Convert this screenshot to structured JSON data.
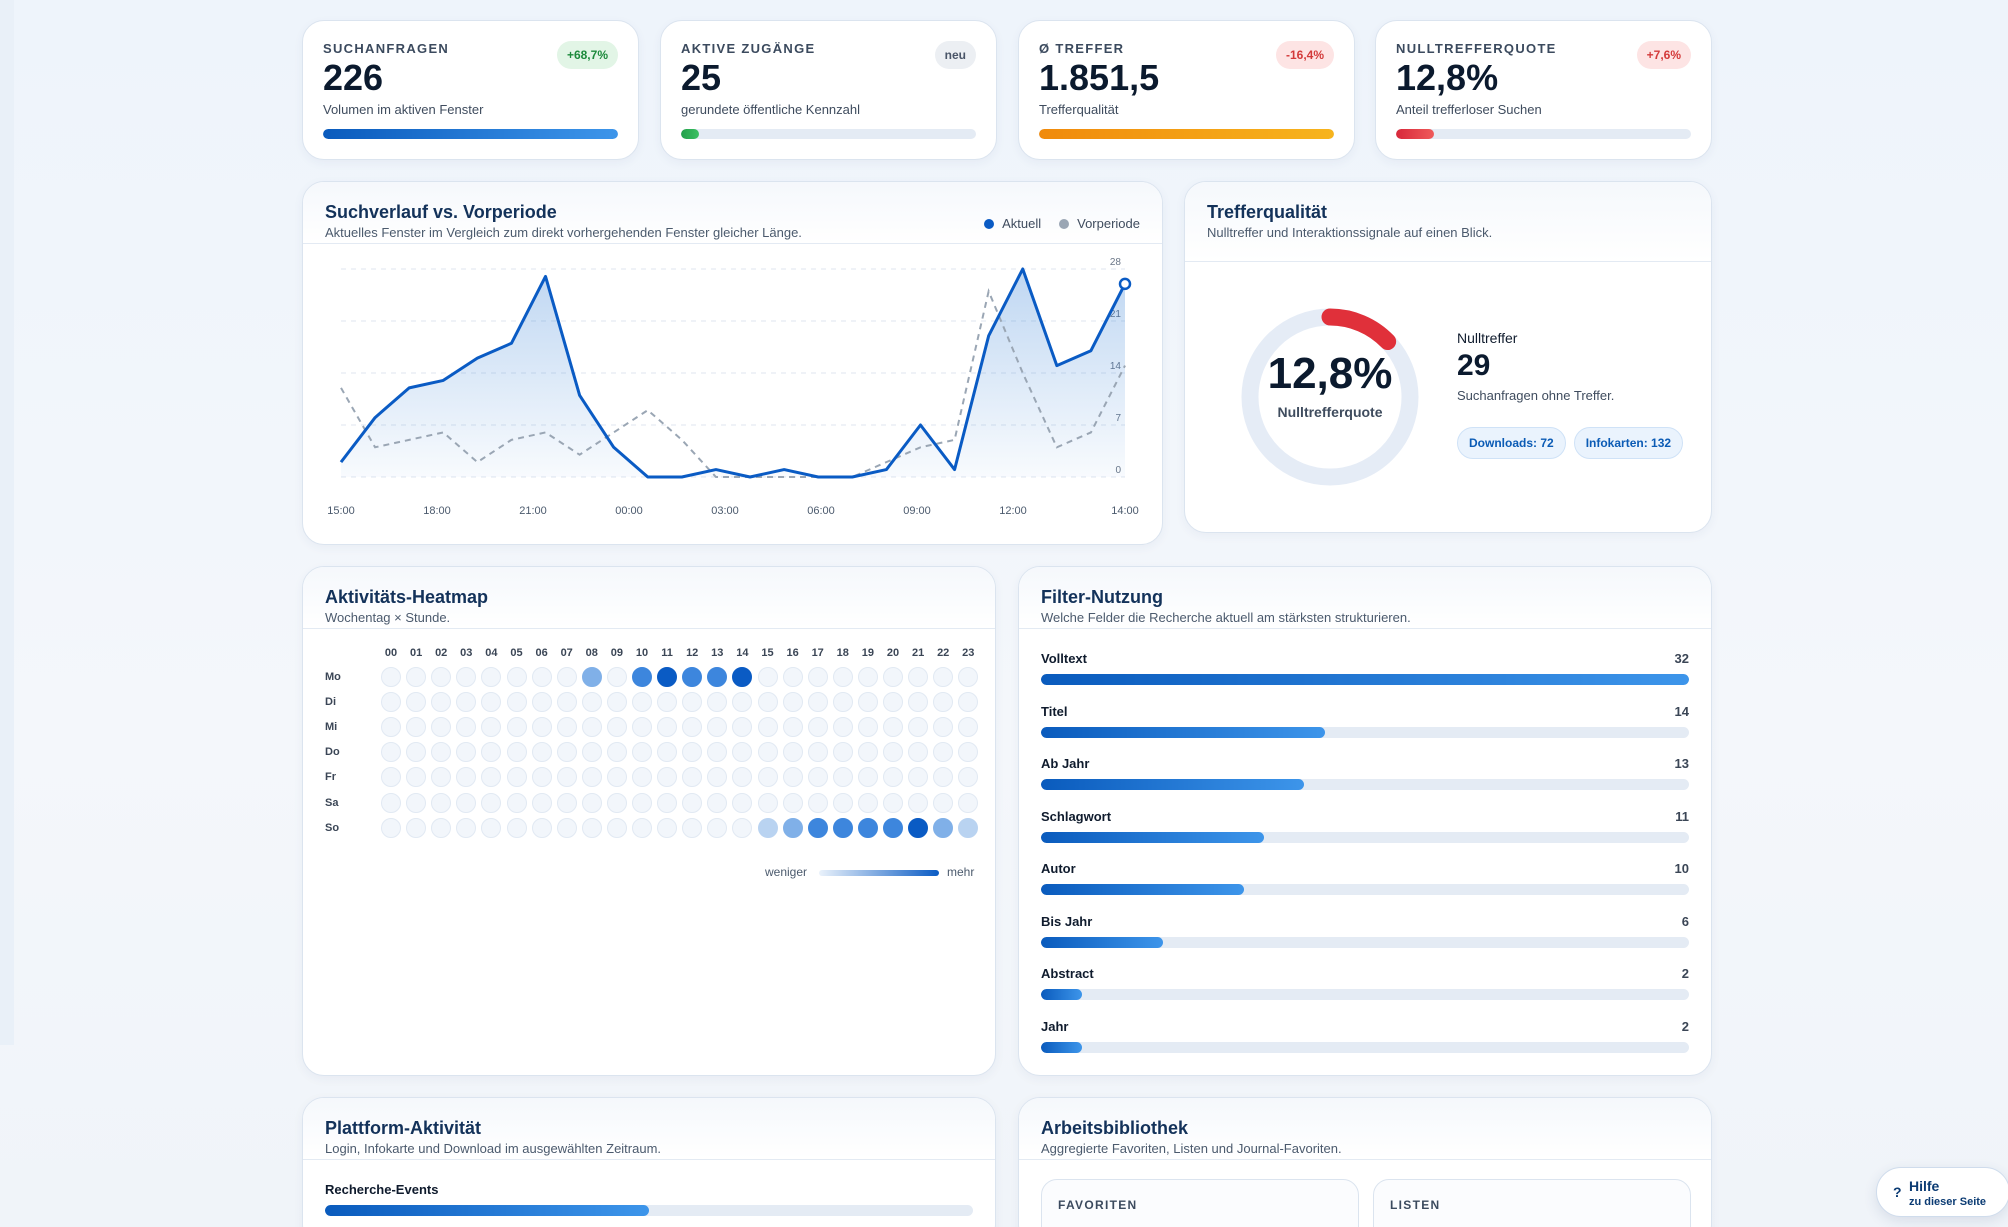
{
  "kpis": [
    {
      "label": "SUCHANFRAGEN",
      "value": "226",
      "sub": "Volumen im aktiven Fenster",
      "badge": "+68,7%",
      "progress": 1.0,
      "color_from": "#0a5bbd",
      "color_to": "#3d95ea"
    },
    {
      "label": "AKTIVE ZUGÄNGE",
      "value": "25",
      "sub": "gerundete öffentliche Kennzahl",
      "badge": "neu",
      "progress": 0.06,
      "color_from": "#22a04a",
      "color_to": "#3cc063"
    },
    {
      "label": "Ø TREFFER",
      "value": "1.851,5",
      "sub": "Trefferqualität",
      "badge": "-16,4%",
      "progress": 1.0,
      "color_from": "#f08a0c",
      "color_to": "#f7b41d"
    },
    {
      "label": "NULLTREFFERQUOTE",
      "value": "12,8%",
      "sub": "Anteil trefferloser Suchen",
      "badge": "+7,6%",
      "progress": 0.128,
      "color_from": "#d8283a",
      "color_to": "#ef5a5a"
    }
  ],
  "trend": {
    "title": "Suchverlauf vs. Vorperiode",
    "subtitle": "Aktuelles Fenster im Vergleich zum direkt vorhergehenden Fenster gleicher Länge.",
    "legend_current": "Aktuell",
    "legend_previous": "Vorperiode"
  },
  "chart_data": {
    "type": "line",
    "x_ticks": [
      "15:00",
      "18:00",
      "21:00",
      "00:00",
      "03:00",
      "06:00",
      "09:00",
      "12:00",
      "14:00"
    ],
    "y_ticks": [
      "0",
      "7",
      "14",
      "21",
      "28"
    ],
    "ylim": [
      0,
      28
    ],
    "series": [
      {
        "name": "Aktuell",
        "color": "#0a5bc4",
        "values": [
          2,
          8,
          12,
          13,
          16,
          18,
          27,
          11,
          4,
          0,
          0,
          1,
          0,
          1,
          0,
          0,
          1,
          7,
          1,
          19,
          28,
          15,
          17,
          26
        ]
      },
      {
        "name": "Vorperiode",
        "color": "#9aa6b4",
        "values": [
          12,
          4,
          5,
          6,
          2,
          5,
          6,
          3,
          6,
          9,
          5,
          0,
          0,
          0,
          0,
          0,
          2,
          4,
          5,
          25,
          14,
          4,
          6,
          15
        ]
      }
    ]
  },
  "quality": {
    "title": "Trefferqualität",
    "subtitle": "Nulltreffer und Interaktionssignale auf einen Blick.",
    "donut_value": "12,8%",
    "donut_label": "Nulltrefferquote",
    "donut_fraction": 0.128,
    "zero_label": "Nulltreffer",
    "zero_value": "29",
    "zero_sub": "Suchanfragen ohne Treffer.",
    "pill_downloads": "Downloads: 72",
    "pill_infokarten": "Infokarten: 132"
  },
  "heatmap": {
    "title": "Aktivitäts-Heatmap",
    "subtitle": "Wochentag × Stunde.",
    "hours": [
      "00",
      "01",
      "02",
      "03",
      "04",
      "05",
      "06",
      "07",
      "08",
      "09",
      "10",
      "11",
      "12",
      "13",
      "14",
      "15",
      "16",
      "17",
      "18",
      "19",
      "20",
      "21",
      "22",
      "23"
    ],
    "days": [
      "Mo",
      "Di",
      "Mi",
      "Do",
      "Fr",
      "Sa",
      "So"
    ],
    "values": [
      [
        0,
        0,
        0,
        0,
        0,
        0,
        0,
        0,
        2,
        0,
        3,
        4,
        3,
        3,
        4,
        0,
        0,
        0,
        0,
        0,
        0,
        0,
        0,
        0
      ],
      [
        0,
        0,
        0,
        0,
        0,
        0,
        0,
        0,
        0,
        0,
        0,
        0,
        0,
        0,
        0,
        0,
        0,
        0,
        0,
        0,
        0,
        0,
        0,
        0
      ],
      [
        0,
        0,
        0,
        0,
        0,
        0,
        0,
        0,
        0,
        0,
        0,
        0,
        0,
        0,
        0,
        0,
        0,
        0,
        0,
        0,
        0,
        0,
        0,
        0
      ],
      [
        0,
        0,
        0,
        0,
        0,
        0,
        0,
        0,
        0,
        0,
        0,
        0,
        0,
        0,
        0,
        0,
        0,
        0,
        0,
        0,
        0,
        0,
        0,
        0
      ],
      [
        0,
        0,
        0,
        0,
        0,
        0,
        0,
        0,
        0,
        0,
        0,
        0,
        0,
        0,
        0,
        0,
        0,
        0,
        0,
        0,
        0,
        0,
        0,
        0
      ],
      [
        0,
        0,
        0,
        0,
        0,
        0,
        0,
        0,
        0,
        0,
        0,
        0,
        0,
        0,
        0,
        0,
        0,
        0,
        0,
        0,
        0,
        0,
        0,
        0
      ],
      [
        0,
        0,
        0,
        0,
        0,
        0,
        0,
        0,
        0,
        0,
        0,
        0,
        0,
        0,
        0,
        1,
        2,
        3,
        3,
        3,
        3,
        4,
        2,
        1
      ]
    ],
    "legend_less": "weniger",
    "legend_more": "mehr"
  },
  "filters": {
    "title": "Filter-Nutzung",
    "subtitle": "Welche Felder die Recherche aktuell am stärksten strukturieren.",
    "max": 32,
    "items": [
      {
        "label": "Volltext",
        "value": 32
      },
      {
        "label": "Titel",
        "value": 14
      },
      {
        "label": "Ab Jahr",
        "value": 13
      },
      {
        "label": "Schlagwort",
        "value": 11
      },
      {
        "label": "Autor",
        "value": 10
      },
      {
        "label": "Bis Jahr",
        "value": 6
      },
      {
        "label": "Abstract",
        "value": 2
      },
      {
        "label": "Jahr",
        "value": 2
      }
    ]
  },
  "platform": {
    "title": "Plattform-Aktivität",
    "subtitle": "Login, Infokarte und Download im ausgewählten Zeitraum.",
    "events_label": "Recherche-Events",
    "events_fraction": 0.5
  },
  "library": {
    "title": "Arbeitsbibliothek",
    "subtitle": "Aggregierte Favoriten, Listen und Journal-Favoriten.",
    "favorites_label": "FAVORITEN",
    "lists_label": "LISTEN"
  },
  "help": {
    "title": "Hilfe",
    "sub": "zu dieser Seite",
    "icon": "?"
  }
}
